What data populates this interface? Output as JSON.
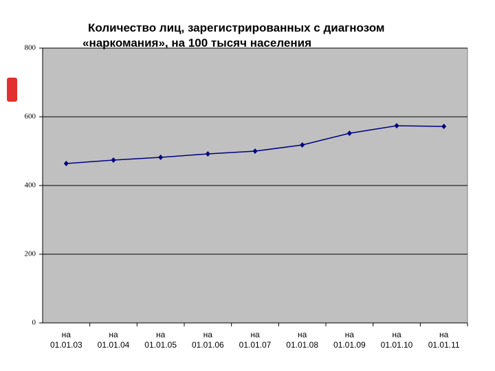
{
  "chart_data": {
    "type": "line",
    "title": "Количество лиц, зарегистрированных с диагнозом «наркомания», на 100 тысяч населения",
    "categories": [
      "на 01.01.03",
      "на 01.01.04",
      "на 01.01.05",
      "на 01.01.06",
      "на 01.01.07",
      "на 01.01.08",
      "на 01.01.09",
      "на 01.01.10",
      "на 01.01.11"
    ],
    "values": [
      464,
      474,
      482,
      492,
      500,
      518,
      552,
      574,
      572
    ],
    "color": "#000080",
    "ylim": [
      0,
      800
    ],
    "yticks": [
      0,
      200,
      400,
      600,
      800
    ],
    "grid": true
  }
}
